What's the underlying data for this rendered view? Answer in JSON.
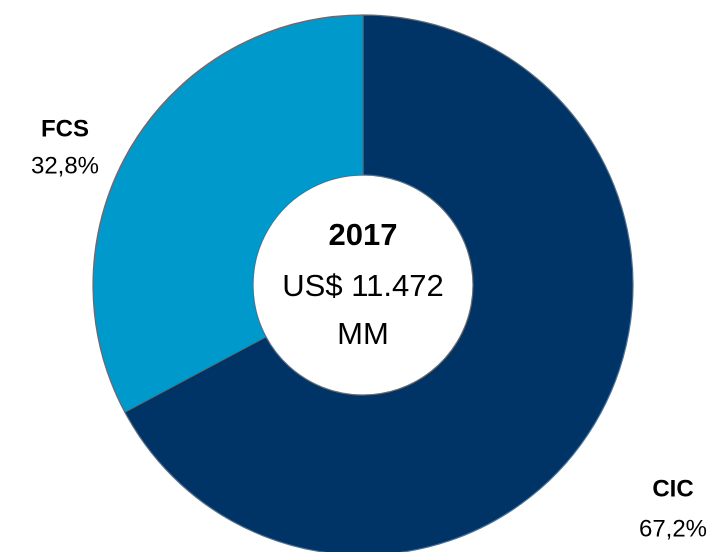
{
  "chart_data": {
    "type": "donut",
    "categories": [
      "CIC",
      "FCS"
    ],
    "values": [
      67.2,
      32.8
    ],
    "value_labels": [
      "67,2%",
      "32,8%"
    ],
    "colors": [
      "#003366",
      "#0099cc"
    ],
    "center_title": "2017",
    "center_text": [
      "US$ 11.472",
      "MM"
    ]
  }
}
